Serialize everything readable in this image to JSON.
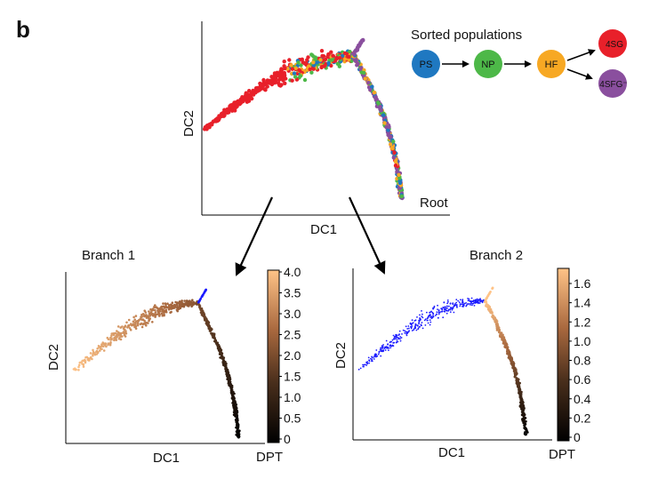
{
  "panel_label": "b",
  "legend": {
    "title": "Sorted populations",
    "nodes": [
      {
        "id": "PS",
        "label": "PS",
        "color": "#1f78c1"
      },
      {
        "id": "NP",
        "label": "NP",
        "color": "#4db848"
      },
      {
        "id": "HF",
        "label": "HF",
        "color": "#f7a823"
      },
      {
        "id": "4SG",
        "label": "4SG",
        "color": "#e8202a"
      },
      {
        "id": "4SFG",
        "label": "4SFG⁻",
        "color": "#8a4f9e"
      }
    ],
    "edges": [
      [
        "PS",
        "NP"
      ],
      [
        "NP",
        "HF"
      ],
      [
        "HF",
        "4SG"
      ],
      [
        "HF",
        "4SFG"
      ]
    ]
  },
  "top_plot": {
    "xlabel": "DC1",
    "ylabel": "DC2",
    "root_label": "Root"
  },
  "branch1": {
    "title": "Branch 1",
    "xlabel": "DC1",
    "ylabel": "DC2",
    "colorbar_label": "DPT",
    "colorbar_ticks": [
      "4.0",
      "3.5",
      "3.0",
      "2.5",
      "2.0",
      "1.5",
      "1.0",
      "0.5",
      "0"
    ]
  },
  "branch2": {
    "title": "Branch 2",
    "xlabel": "DC1",
    "ylabel": "DC2",
    "colorbar_label": "DPT",
    "colorbar_ticks": [
      "1.6",
      "1.4",
      "1.2",
      "1.0",
      "0.8",
      "0.6",
      "0.4",
      "0.2",
      "0"
    ]
  },
  "chart_data": [
    {
      "type": "scatter",
      "title": "",
      "xlabel": "DC1",
      "ylabel": "DC2",
      "annotations": [
        "Root"
      ],
      "legend": [
        "PS",
        "NP",
        "HF",
        "4SG",
        "4SFG⁻"
      ],
      "description": "Diffusion map: cells colored by sorted population; left arm mostly 4SG (red), right descending arm mostly 4SFG- (purple) toward root with PS/NP/HF mixed."
    },
    {
      "type": "scatter",
      "title": "Branch 1",
      "xlabel": "DC1",
      "ylabel": "DC2",
      "colorbar": {
        "label": "DPT",
        "range": [
          0,
          4.0
        ],
        "ticks": [
          0,
          0.5,
          1.0,
          1.5,
          2.0,
          2.5,
          3.0,
          3.5,
          4.0
        ]
      },
      "description": "DPT increases from root (0) along descending arm to the left arm tip (~4.0); other branch shown in blue."
    },
    {
      "type": "scatter",
      "title": "Branch 2",
      "xlabel": "DC1",
      "ylabel": "DC2",
      "colorbar": {
        "label": "DPT",
        "range": [
          0,
          1.65
        ],
        "ticks": [
          0,
          0.2,
          0.4,
          0.6,
          0.8,
          1.0,
          1.2,
          1.4,
          1.6
        ]
      },
      "description": "DPT increases from root (0) up the right arm to its tip (~1.65); left arm shown in blue."
    }
  ]
}
